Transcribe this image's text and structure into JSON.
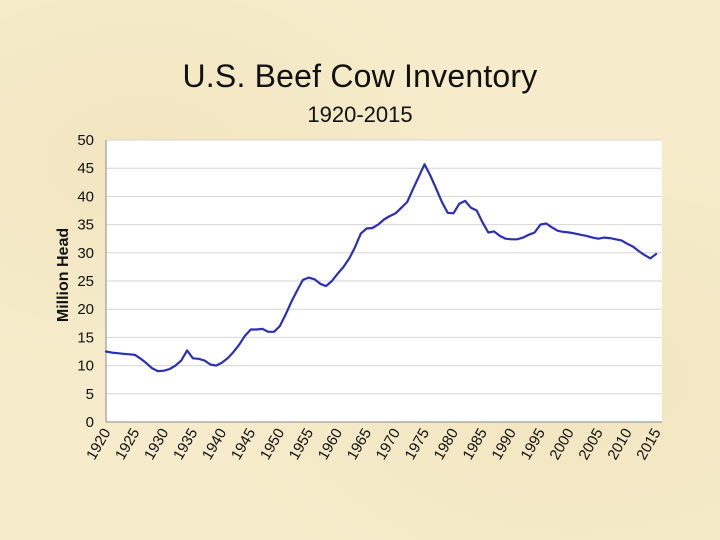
{
  "chart_data": {
    "type": "line",
    "title": "U.S. Beef Cow Inventory",
    "subtitle": "1920-2015",
    "xlabel": "",
    "ylabel": "Million Head",
    "xlim": [
      1920,
      2016
    ],
    "ylim": [
      0,
      50
    ],
    "y_ticks": [
      0,
      5,
      10,
      15,
      20,
      25,
      30,
      35,
      40,
      45,
      50
    ],
    "x_ticks": [
      1920,
      1925,
      1930,
      1935,
      1940,
      1945,
      1950,
      1955,
      1960,
      1965,
      1970,
      1975,
      1980,
      1985,
      1990,
      1995,
      2000,
      2005,
      2010,
      2015
    ],
    "grid": "horizontal",
    "series": [
      {
        "color": "#2b2fb8",
        "x": [
          1920,
          1921,
          1922,
          1923,
          1924,
          1925,
          1926,
          1927,
          1928,
          1929,
          1930,
          1931,
          1932,
          1933,
          1934,
          1935,
          1936,
          1937,
          1938,
          1939,
          1940,
          1941,
          1942,
          1943,
          1944,
          1945,
          1946,
          1947,
          1948,
          1949,
          1950,
          1951,
          1952,
          1953,
          1954,
          1955,
          1956,
          1957,
          1958,
          1959,
          1960,
          1961,
          1962,
          1963,
          1964,
          1965,
          1966,
          1967,
          1968,
          1969,
          1970,
          1971,
          1972,
          1973,
          1974,
          1975,
          1976,
          1977,
          1978,
          1979,
          1980,
          1981,
          1982,
          1983,
          1984,
          1985,
          1986,
          1987,
          1988,
          1989,
          1990,
          1991,
          1992,
          1993,
          1994,
          1995,
          1996,
          1997,
          1998,
          1999,
          2000,
          2001,
          2002,
          2003,
          2004,
          2005,
          2006,
          2007,
          2008,
          2009,
          2010,
          2011,
          2012,
          2013,
          2014,
          2015
        ],
        "values": [
          12.5,
          12.3,
          12.2,
          12.1,
          12.0,
          11.9,
          11.2,
          10.4,
          9.5,
          9.0,
          9.1,
          9.4,
          10.0,
          10.9,
          12.7,
          11.3,
          11.2,
          10.9,
          10.2,
          10.0,
          10.5,
          11.3,
          12.4,
          13.7,
          15.3,
          16.4,
          16.4,
          16.5,
          16.0,
          16.0,
          17.0,
          19.0,
          21.3,
          23.3,
          25.2,
          25.6,
          25.3,
          24.5,
          24.1,
          25.0,
          26.3,
          27.5,
          29.0,
          31.0,
          33.4,
          34.3,
          34.4,
          35.0,
          35.9,
          36.5,
          37.0,
          38.0,
          39.0,
          41.3,
          43.5,
          45.7,
          43.7,
          41.4,
          39.0,
          37.1,
          37.0,
          38.7,
          39.2,
          38.0,
          37.5,
          35.4,
          33.6,
          33.8,
          33.0,
          32.5,
          32.4,
          32.4,
          32.7,
          33.2,
          33.6,
          35.0,
          35.2,
          34.5,
          33.9,
          33.7,
          33.6,
          33.4,
          33.2,
          33.0,
          32.7,
          32.5,
          32.7,
          32.6,
          32.4,
          32.2,
          31.6,
          31.1,
          30.3,
          29.6,
          29.0,
          29.8
        ]
      }
    ]
  }
}
